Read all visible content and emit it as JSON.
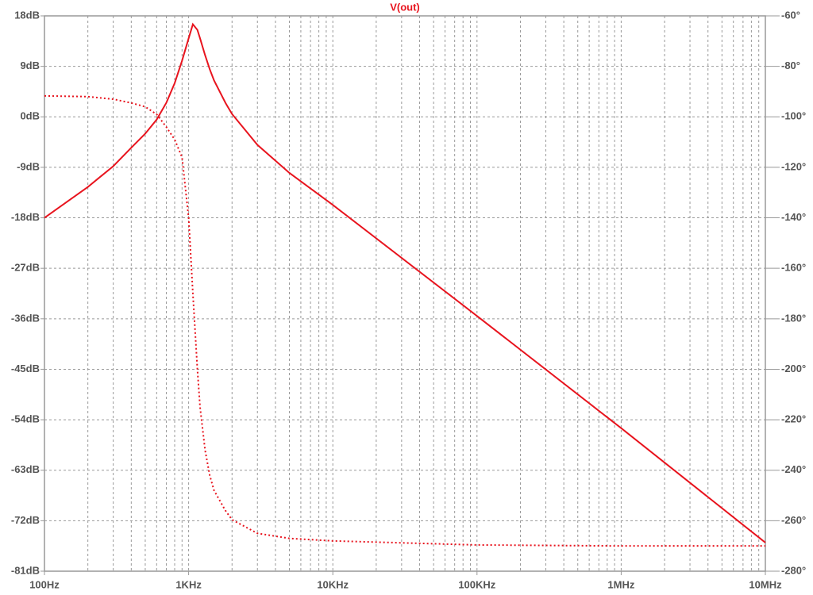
{
  "chart_data": {
    "type": "line",
    "title": "V(out)",
    "xscale": "log",
    "grid": true,
    "x": [
      100,
      200,
      300,
      400,
      500,
      600,
      700,
      800,
      900,
      1000,
      1070,
      1150,
      1200,
      1300,
      1400,
      1500,
      1800,
      2000,
      3000,
      5000,
      10000,
      100000,
      1000000,
      10000000
    ],
    "xlim": [
      100,
      10000000
    ],
    "xticks": [
      {
        "value": 100,
        "label": "100Hz"
      },
      {
        "value": 1000,
        "label": "1KHz"
      },
      {
        "value": 10000,
        "label": "10KHz"
      },
      {
        "value": 100000,
        "label": "100KHz"
      },
      {
        "value": 1000000,
        "label": "1MHz"
      },
      {
        "value": 10000000,
        "label": "10MHz"
      }
    ],
    "ylim": [
      -81,
      18
    ],
    "yticks": [
      {
        "value": 18,
        "label": "18dB"
      },
      {
        "value": 9,
        "label": "9dB"
      },
      {
        "value": 0,
        "label": "0dB"
      },
      {
        "value": -9,
        "label": "-9dB"
      },
      {
        "value": -18,
        "label": "-18dB"
      },
      {
        "value": -27,
        "label": "-27dB"
      },
      {
        "value": -36,
        "label": "-36dB"
      },
      {
        "value": -45,
        "label": "-45dB"
      },
      {
        "value": -54,
        "label": "-54dB"
      },
      {
        "value": -63,
        "label": "-63dB"
      },
      {
        "value": -72,
        "label": "-72dB"
      },
      {
        "value": -81,
        "label": "-81dB"
      }
    ],
    "y2lim": [
      -280,
      -60
    ],
    "y2ticks": [
      {
        "value": -60,
        "label": "-60°"
      },
      {
        "value": -80,
        "label": "-80°"
      },
      {
        "value": -100,
        "label": "-100°"
      },
      {
        "value": -120,
        "label": "-120°"
      },
      {
        "value": -140,
        "label": "-140°"
      },
      {
        "value": -160,
        "label": "-160°"
      },
      {
        "value": -180,
        "label": "-180°"
      },
      {
        "value": -200,
        "label": "-200°"
      },
      {
        "value": -220,
        "label": "-220°"
      },
      {
        "value": -240,
        "label": "-240°"
      },
      {
        "value": -260,
        "label": "-260°"
      },
      {
        "value": -280,
        "label": "-280°"
      }
    ],
    "series": [
      {
        "color": "#e8141e",
        "style": "solid",
        "values": [
          -18,
          -12.5,
          -8.8,
          -5.5,
          -3,
          -0.5,
          2.5,
          6,
          10,
          14,
          16.5,
          15.5,
          14,
          11,
          8.5,
          6.5,
          2.5,
          0.5,
          -5,
          -10,
          -15.7,
          -35.5,
          -55.5,
          -75.9
        ]
      },
      {
        "color": "#e8141e",
        "style": "dotted",
        "axis": "y2",
        "values": [
          -91.7,
          -92,
          -93,
          -94.5,
          -96,
          -99,
          -104,
          -109,
          -116,
          -140,
          -170,
          -200,
          -215,
          -232,
          -242,
          -248,
          -256,
          -259.6,
          -265,
          -267,
          -268,
          -269.6,
          -270,
          -270
        ]
      }
    ]
  }
}
